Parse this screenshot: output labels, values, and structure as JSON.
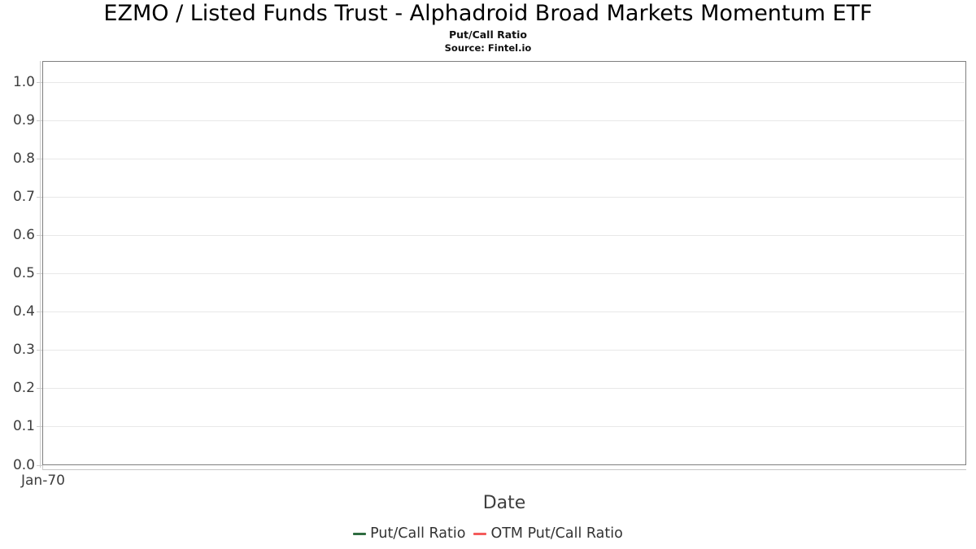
{
  "header": {
    "title": "EZMO / Listed Funds Trust - Alphadroid Broad Markets Momentum ETF",
    "subtitle": "Put/Call Ratio",
    "source": "Source: Fintel.io"
  },
  "chart_data": {
    "type": "line",
    "title": "EZMO / Listed Funds Trust - Alphadroid Broad Markets Momentum ETF",
    "subtitle": "Put/Call Ratio",
    "source": "Source: Fintel.io",
    "xlabel": "Date",
    "ylabel": "",
    "ylim": [
      0.0,
      1.06
    ],
    "grid": "horizontal",
    "legend_position": "bottom-center",
    "x_tick_labels": [
      "Jan-70"
    ],
    "y_ticks": [
      {
        "value": 0.0,
        "label": "0.0"
      },
      {
        "value": 0.1,
        "label": "0.1"
      },
      {
        "value": 0.2,
        "label": "0.2"
      },
      {
        "value": 0.3,
        "label": "0.3"
      },
      {
        "value": 0.4,
        "label": "0.4"
      },
      {
        "value": 0.5,
        "label": "0.5"
      },
      {
        "value": 0.6,
        "label": "0.6"
      },
      {
        "value": 0.7,
        "label": "0.7"
      },
      {
        "value": 0.8,
        "label": "0.8"
      },
      {
        "value": 0.9,
        "label": "0.9"
      },
      {
        "value": 1.0,
        "label": "1.0"
      }
    ],
    "series": [
      {
        "name": "Put/Call Ratio",
        "color": "#2e6c40",
        "points": []
      },
      {
        "name": "OTM Put/Call Ratio",
        "color": "#f45b5b",
        "points": []
      }
    ],
    "colors": {
      "plot_border": "#7f7f7f",
      "gridline": "#e8e8e8",
      "tick": "#cccccc",
      "axis_label_text": "#3d3d3d",
      "legend_text": "#333333",
      "title_text": "#000000"
    }
  }
}
